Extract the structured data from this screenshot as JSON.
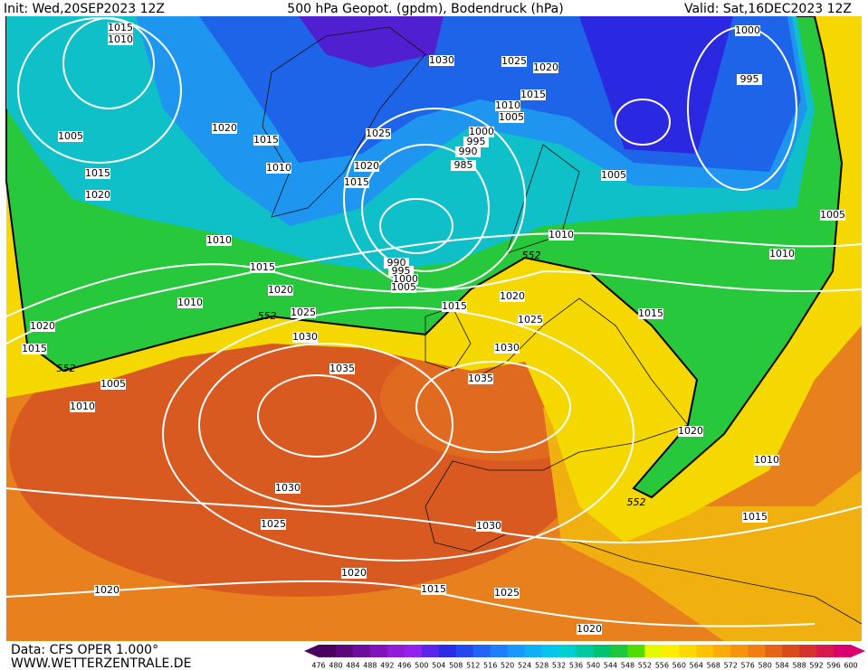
{
  "header": {
    "init": "Init: Wed,20SEP2023 12Z",
    "title": "500 hPa Geopot. (gpdm), Bodendruck (hPa)",
    "valid": "Valid: Sat,16DEC2023 12Z"
  },
  "footer": {
    "data": "Data: CFS OPER 1.000°",
    "site": "WWW.WETTERZENTRALE.DE"
  },
  "colorbar": {
    "ticks": [
      476,
      480,
      484,
      488,
      492,
      496,
      500,
      504,
      508,
      512,
      516,
      520,
      524,
      528,
      532,
      536,
      540,
      544,
      548,
      552,
      556,
      560,
      564,
      568,
      572,
      576,
      580,
      584,
      588,
      592,
      596,
      600
    ]
  },
  "map": {
    "isobar_labels": [
      "1015",
      "1010",
      "1005",
      "1015",
      "1020",
      "1020",
      "1015",
      "1010",
      "1030",
      "1025",
      "1020",
      "1015",
      "1010",
      "1005",
      "1025",
      "1020",
      "1015",
      "1000",
      "995",
      "990",
      "985",
      "1000",
      "995",
      "1005",
      "1005",
      "1010",
      "1010",
      "1010",
      "1015",
      "990",
      "995",
      "1000",
      "1005",
      "1020",
      "1020",
      "1025",
      "1015",
      "1025",
      "1015",
      "1010",
      "1020",
      "1015",
      "1030",
      "1030",
      "1035",
      "1035",
      "1005",
      "1010",
      "1020",
      "1010",
      "1030",
      "1025",
      "1030",
      "1015",
      "1020",
      "1020",
      "1015",
      "1025",
      "1020"
    ],
    "geopotential_labels": [
      "552",
      "552",
      "552",
      "552"
    ]
  }
}
